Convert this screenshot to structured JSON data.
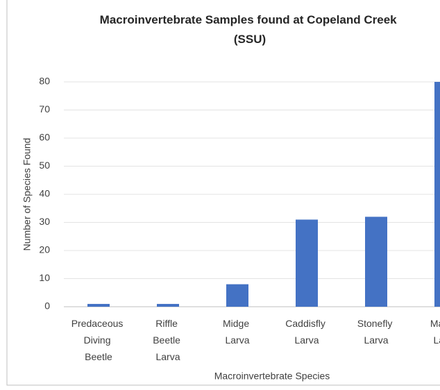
{
  "chart_data": {
    "type": "bar",
    "title": "Macroinvertebrate Samples found at Copeland Creek (SSU)",
    "x_label": "Macroinvertebrate Species",
    "y_label": "Number of Species Found",
    "categories": [
      "Predaceous Diving Beetle",
      "Riffle Beetle Larva",
      "Midge Larva",
      "Caddisfly Larva",
      "Stonefly Larva",
      "Mayfly Larva"
    ],
    "values": [
      1,
      1,
      8,
      31,
      32,
      80
    ],
    "color": "#4472c4",
    "ylim": [
      0,
      80
    ],
    "yticks": [
      0,
      10,
      20,
      30,
      40,
      50,
      60,
      70,
      80
    ],
    "grid": true
  }
}
